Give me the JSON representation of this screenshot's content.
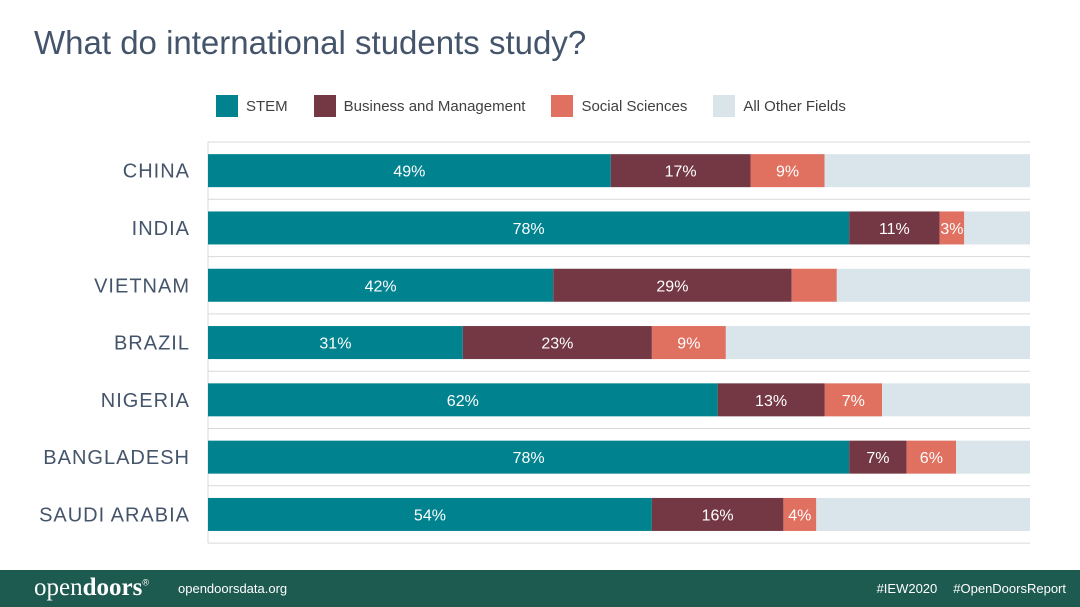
{
  "page": {
    "title": "What do international students study?"
  },
  "footer": {
    "logo_light": "open",
    "logo_bold": "doors",
    "logo_mark": "®",
    "url": "opendoorsdata.org",
    "tag_1": "#IEW2020",
    "tag_2": "#OpenDoorsReport",
    "background": "#1d5a4f"
  },
  "chart_data": {
    "type": "bar",
    "orientation": "horizontal",
    "stacked": true,
    "title": "What do international students study?",
    "categories": [
      "CHINA",
      "INDIA",
      "VIETNAM",
      "BRAZIL",
      "NIGERIA",
      "BANGLADESH",
      "SAUDI ARABIA"
    ],
    "xlim": [
      0,
      100
    ],
    "unit": "%",
    "legend_position": "top",
    "grid": true,
    "series": [
      {
        "name": "STEM",
        "color": "#00838f",
        "values": [
          49,
          78,
          42,
          31,
          62,
          78,
          54
        ],
        "labels": [
          "49%",
          "78%",
          "42%",
          "31%",
          "62%",
          "78%",
          "54%"
        ]
      },
      {
        "name": "Business and Management",
        "color": "#733843",
        "values": [
          17,
          11,
          29,
          23,
          13,
          7,
          16
        ],
        "labels": [
          "17%",
          "11%",
          "29%",
          "23%",
          "13%",
          "7%",
          "16%"
        ]
      },
      {
        "name": "Social Sciences",
        "color": "#e07060",
        "values": [
          9,
          3,
          5.5,
          9,
          7,
          6,
          4
        ],
        "labels": [
          "9%",
          "3%",
          "",
          "9%",
          "7%",
          "6%",
          "4%"
        ]
      },
      {
        "name": "All Other Fields",
        "color": "#dae4eb",
        "values": [
          25,
          8,
          23.5,
          37,
          18,
          9,
          26
        ],
        "labels": [
          "",
          "",
          "",
          "",
          "",
          "",
          ""
        ]
      }
    ]
  }
}
